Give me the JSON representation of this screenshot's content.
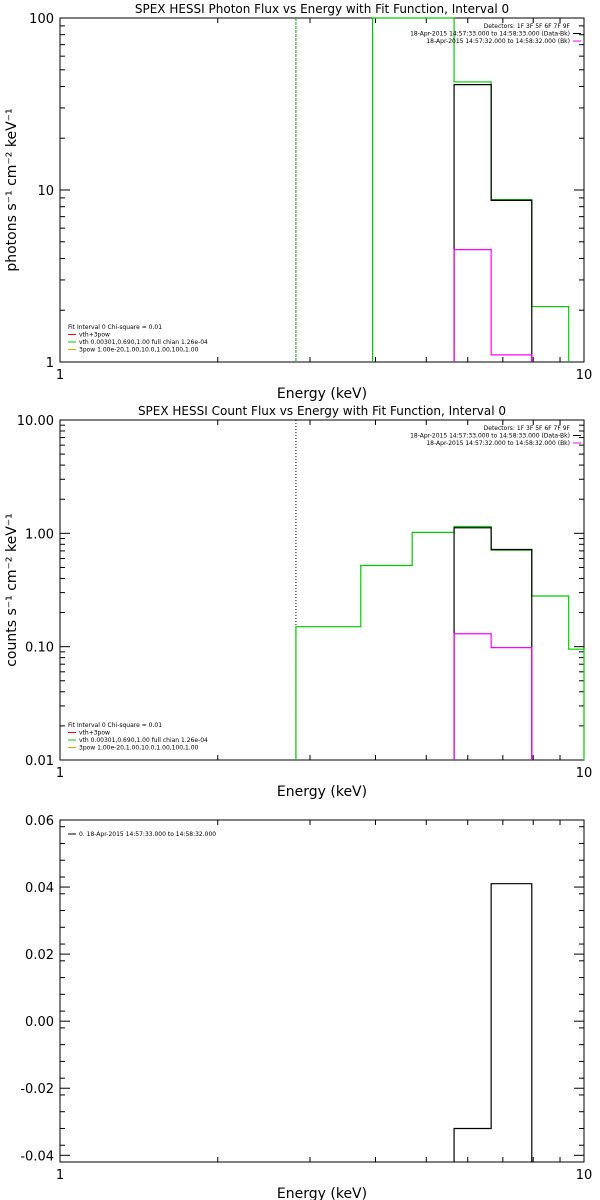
{
  "chart_data": [
    {
      "type": "line",
      "title": "SPEX HESSI Photon Flux vs Energy with Fit Function, Interval 0",
      "xlabel": "Energy (keV)",
      "ylabel": "photons s⁻¹ cm⁻² keV⁻¹",
      "xscale": "log",
      "yscale": "log",
      "xlim": [
        1,
        10
      ],
      "ylim": [
        1,
        100
      ],
      "xticks": [
        1,
        10
      ],
      "xtick_labels": [
        "1",
        "10"
      ],
      "yticks": [
        1,
        10,
        100
      ],
      "ytick_labels": [
        "1",
        "10",
        "100"
      ],
      "legend_right": [
        {
          "text": "Detectors: 1F 3F 5F 6F 7F 9F",
          "color": ""
        },
        {
          "text": "18-Apr-2015 14:57:33.000 to 14:58:33.000 (Data-Bk)",
          "color": "#000000"
        },
        {
          "text": "18-Apr-2015 14:57:32.000 to 14:58:32.000 (Bk)",
          "color": "#ff00ff"
        }
      ],
      "legend_left": [
        {
          "text": "Fit Interval  0    Chi-square = 0.01",
          "color": ""
        },
        {
          "text": "vth+3pow",
          "color": "#ff0000"
        },
        {
          "text": "vth 0.00301,0.690,1.00   full chian 1.26e-04",
          "color": "#00cc00"
        },
        {
          "text": "3pow 1.00e-20,1.00,10.0,1.00,100,1.00",
          "color": "#ddaa00"
        }
      ],
      "vline": {
        "x": 2.82,
        "color": "#00aa00",
        "style": "dashed"
      },
      "series": [
        {
          "color": "#00cc00",
          "bins": [
            [
              3.95,
              5.65,
              100
            ],
            [
              5.65,
              6.65,
              42.5
            ],
            [
              6.65,
              7.95,
              8.8
            ],
            [
              7.95,
              9.35,
              2.1
            ]
          ]
        },
        {
          "color": "#000000",
          "bins": [
            [
              5.65,
              6.65,
              41
            ],
            [
              6.65,
              7.95,
              8.7
            ],
            [
              7.95,
              7.95,
              1
            ]
          ]
        },
        {
          "color": "#ff00ff",
          "bins": [
            [
              5.65,
              6.65,
              4.5
            ],
            [
              6.65,
              7.95,
              1.1
            ]
          ]
        }
      ]
    },
    {
      "type": "line",
      "title": "SPEX HESSI Count Flux vs Energy with Fit Function, Interval 0",
      "xlabel": "Energy (keV)",
      "ylabel": "counts s⁻¹ cm⁻² keV⁻¹",
      "xscale": "log",
      "yscale": "log",
      "xlim": [
        1,
        10
      ],
      "ylim": [
        0.01,
        10
      ],
      "xticks": [
        1,
        10
      ],
      "xtick_labels": [
        "1",
        "10"
      ],
      "yticks": [
        0.01,
        0.1,
        1,
        10
      ],
      "ytick_labels": [
        "0.01",
        "0.10",
        "1.00",
        "10.00"
      ],
      "legend_right": [
        {
          "text": "Detectors: 1F 3F 5F 6F 7F 9F",
          "color": ""
        },
        {
          "text": "18-Apr-2015 14:57:33.000 to 14:58:33.000 (Data-Bk)",
          "color": "#000000"
        },
        {
          "text": "18-Apr-2015 14:57:32.000 to 14:58:32.000 (Bk)",
          "color": "#ff00ff"
        }
      ],
      "legend_left": [
        {
          "text": "Fit Interval  0    Chi-square = 0.01",
          "color": ""
        },
        {
          "text": "vth+3pow",
          "color": "#ff0000"
        },
        {
          "text": "vth 0.00301,0.690,1.00   full chian 1.26e-04",
          "color": "#00cc00"
        },
        {
          "text": "3pow 1.00e-20,1.00,10.0,1.00,100,1.00",
          "color": "#ddaa00"
        }
      ],
      "vline": {
        "x": 2.82,
        "color": "#000000",
        "style": "dotted"
      },
      "series": [
        {
          "color": "#00cc00",
          "bins": [
            [
              2.82,
              3.75,
              0.15
            ],
            [
              3.75,
              4.7,
              0.52
            ],
            [
              4.7,
              5.65,
              1.02
            ],
            [
              5.65,
              6.65,
              1.15
            ],
            [
              6.65,
              7.95,
              0.71
            ],
            [
              7.95,
              9.35,
              0.28
            ],
            [
              9.35,
              10,
              0.095
            ]
          ]
        },
        {
          "color": "#000000",
          "bins": [
            [
              5.65,
              6.65,
              1.12
            ],
            [
              6.65,
              7.95,
              0.72
            ],
            [
              7.95,
              7.95,
              0.01
            ]
          ]
        },
        {
          "color": "#ff00ff",
          "bins": [
            [
              5.65,
              6.65,
              0.13
            ],
            [
              6.65,
              7.95,
              0.098
            ]
          ]
        }
      ]
    },
    {
      "type": "line",
      "title": "",
      "xlabel": "Energy (keV)",
      "ylabel": "",
      "xscale": "log",
      "yscale": "linear",
      "xlim": [
        1,
        10
      ],
      "ylim": [
        -0.042,
        0.06
      ],
      "xticks": [
        1,
        10
      ],
      "xtick_labels": [
        "1",
        "10"
      ],
      "yticks": [
        -0.04,
        -0.02,
        0,
        0.02,
        0.04,
        0.06
      ],
      "ytick_labels": [
        "-0.04",
        "-0.02",
        "0.00",
        "0.02",
        "0.04",
        "0.06"
      ],
      "legend_right": [],
      "legend_left": [
        {
          "text": "0. 18-Apr-2015 14:57:33.000 to 14:58:32.000",
          "color": "#000000"
        }
      ],
      "series": [
        {
          "color": "#000000",
          "bins": [
            [
              5.65,
              6.65,
              -0.032
            ],
            [
              6.65,
              7.95,
              0.041
            ]
          ]
        }
      ]
    }
  ]
}
